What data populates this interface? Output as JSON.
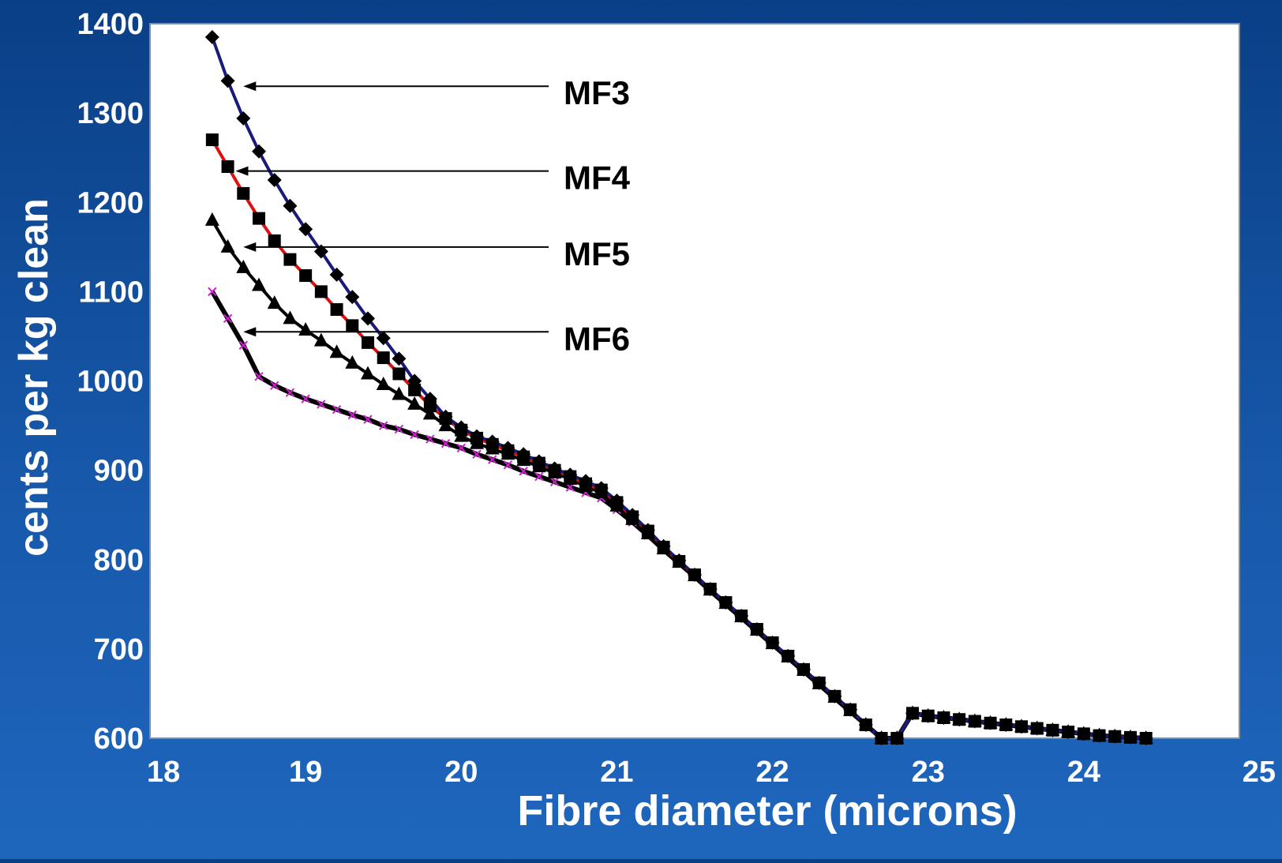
{
  "chart_data": {
    "type": "line",
    "title": "",
    "xlabel": "Fibre diameter (microns)",
    "ylabel": "cents per kg clean",
    "xlim": [
      18,
      25
    ],
    "ylim": [
      600,
      1400
    ],
    "xticks": [
      "18",
      "19",
      "20",
      "21",
      "22",
      "23",
      "24",
      "25"
    ],
    "yticks": [
      "600",
      "700",
      "800",
      "900",
      "1000",
      "1100",
      "1200",
      "1300",
      "1400"
    ],
    "grid": false,
    "legend": "none",
    "annotations": [
      {
        "label": "MF3",
        "target_x": 18.6,
        "target_y": 1330
      },
      {
        "label": "MF4",
        "target_x": 18.55,
        "target_y": 1235
      },
      {
        "label": "MF5",
        "target_x": 18.6,
        "target_y": 1150
      },
      {
        "label": "MF6",
        "target_x": 18.6,
        "target_y": 1055
      }
    ],
    "series": [
      {
        "line_color": "#1a1a7a",
        "marker": "diamond",
        "marker_color": "#000000",
        "x": [
          18.4,
          18.5,
          18.6,
          18.7,
          18.8,
          18.9,
          19.0,
          19.1,
          19.2,
          19.3,
          19.4,
          19.5,
          19.6,
          19.7,
          19.8,
          19.9,
          20.0,
          20.1,
          20.2,
          20.3,
          20.4,
          20.5,
          20.6,
          20.7,
          20.8,
          20.9,
          21.0,
          21.1,
          21.2,
          21.3,
          21.4,
          21.5,
          21.6,
          21.7,
          21.8,
          21.9,
          22.0,
          22.1,
          22.2,
          22.3,
          22.4,
          22.5,
          22.6,
          22.7,
          22.8,
          22.9,
          23.0,
          23.1,
          23.2,
          23.3,
          23.4,
          23.5,
          23.6,
          23.7,
          23.8,
          23.9,
          24.0,
          24.1,
          24.2,
          24.3,
          24.4
        ],
        "y": [
          1385,
          1336,
          1294,
          1257,
          1225,
          1196,
          1170,
          1145,
          1119,
          1094,
          1070,
          1048,
          1025,
          1000,
          980,
          960,
          948,
          938,
          932,
          925,
          918,
          910,
          902,
          895,
          888,
          880,
          866,
          850,
          833,
          815,
          799,
          783,
          767,
          752,
          737,
          722,
          707,
          692,
          677,
          662,
          647,
          632,
          615,
          600,
          600,
          628,
          625,
          623,
          621,
          619,
          617,
          615,
          613,
          611,
          609,
          607,
          605,
          603,
          602,
          601,
          600
        ]
      },
      {
        "line_color": "#dd1111",
        "marker": "square",
        "marker_color": "#000000",
        "x": [
          18.4,
          18.5,
          18.6,
          18.7,
          18.8,
          18.9,
          19.0,
          19.1,
          19.2,
          19.3,
          19.4,
          19.5,
          19.6,
          19.7,
          19.8,
          19.9,
          20.0,
          20.1,
          20.2,
          20.3,
          20.4,
          20.5,
          20.6,
          20.7,
          20.8,
          20.9,
          21.0,
          21.1,
          21.2,
          21.3,
          21.4,
          21.5,
          21.6,
          21.7,
          21.8,
          21.9,
          22.0,
          22.1,
          22.2,
          22.3,
          22.4,
          22.5,
          22.6,
          22.7,
          22.8,
          22.9,
          23.0,
          23.1,
          23.2,
          23.3,
          23.4,
          23.5,
          23.6,
          23.7,
          23.8,
          23.9,
          24.0,
          24.1,
          24.2,
          24.3,
          24.4
        ],
        "y": [
          1270,
          1240,
          1210,
          1182,
          1157,
          1136,
          1118,
          1100,
          1080,
          1062,
          1043,
          1026,
          1008,
          990,
          972,
          958,
          945,
          936,
          929,
          922,
          915,
          908,
          900,
          893,
          885,
          878,
          864,
          848,
          832,
          814,
          798,
          783,
          767,
          752,
          737,
          722,
          707,
          692,
          677,
          662,
          647,
          632,
          615,
          600,
          600,
          628,
          625,
          623,
          621,
          619,
          617,
          615,
          613,
          611,
          609,
          607,
          605,
          603,
          602,
          601,
          600
        ]
      },
      {
        "line_color": "#000000",
        "marker": "triangle",
        "marker_color": "#000000",
        "x": [
          18.4,
          18.5,
          18.6,
          18.7,
          18.8,
          18.9,
          19.0,
          19.1,
          19.2,
          19.3,
          19.4,
          19.5,
          19.6,
          19.7,
          19.8,
          19.9,
          20.0,
          20.1,
          20.2,
          20.3,
          20.4,
          20.5,
          20.6,
          20.7,
          20.8,
          20.9,
          21.0,
          21.1,
          21.2,
          21.3,
          21.4,
          21.5,
          21.6,
          21.7,
          21.8,
          21.9,
          22.0,
          22.1,
          22.2,
          22.3,
          22.4,
          22.5,
          22.6,
          22.7,
          22.8,
          22.9,
          23.0,
          23.1,
          23.2,
          23.3,
          23.4,
          23.5,
          23.6,
          23.7,
          23.8,
          23.9,
          24.0,
          24.1,
          24.2,
          24.3,
          24.4
        ],
        "y": [
          1180,
          1150,
          1127,
          1107,
          1087,
          1070,
          1057,
          1045,
          1032,
          1020,
          1008,
          996,
          985,
          974,
          963,
          950,
          938,
          930,
          924,
          918,
          911,
          904,
          897,
          890,
          882,
          875,
          860,
          845,
          829,
          812,
          797,
          782,
          766,
          751,
          736,
          721,
          706,
          691,
          676,
          661,
          646,
          631,
          615,
          600,
          600,
          628,
          625,
          623,
          621,
          619,
          617,
          615,
          613,
          611,
          609,
          607,
          605,
          603,
          602,
          601,
          600
        ]
      },
      {
        "line_color": "#000000",
        "marker": "x",
        "marker_color": "#cc22cc",
        "x": [
          18.4,
          18.5,
          18.6,
          18.7,
          18.8,
          18.9,
          19.0,
          19.1,
          19.2,
          19.3,
          19.4,
          19.5,
          19.6,
          19.7,
          19.8,
          19.9,
          20.0,
          20.1,
          20.2,
          20.3,
          20.4,
          20.5,
          20.6,
          20.7,
          20.8,
          20.9,
          21.0,
          21.1,
          21.2,
          21.3,
          21.4,
          21.5,
          21.6,
          21.7,
          21.8,
          21.9,
          22.0,
          22.1,
          22.2,
          22.3,
          22.4,
          22.5,
          22.6,
          22.7,
          22.8,
          22.9,
          23.0,
          23.1,
          23.2,
          23.3,
          23.4,
          23.5,
          23.6,
          23.7,
          23.8,
          23.9,
          24.0,
          24.1,
          24.2,
          24.3,
          24.4
        ],
        "y": [
          1100,
          1070,
          1040,
          1005,
          995,
          987,
          980,
          974,
          968,
          962,
          957,
          950,
          946,
          940,
          935,
          930,
          925,
          918,
          912,
          906,
          899,
          893,
          887,
          881,
          875,
          869,
          856,
          842,
          827,
          811,
          796,
          781,
          765,
          750,
          735,
          720,
          705,
          690,
          675,
          660,
          645,
          630,
          615,
          600,
          600,
          628,
          625,
          623,
          621,
          619,
          617,
          615,
          613,
          611,
          609,
          607,
          605,
          603,
          602,
          601,
          600
        ]
      }
    ]
  }
}
